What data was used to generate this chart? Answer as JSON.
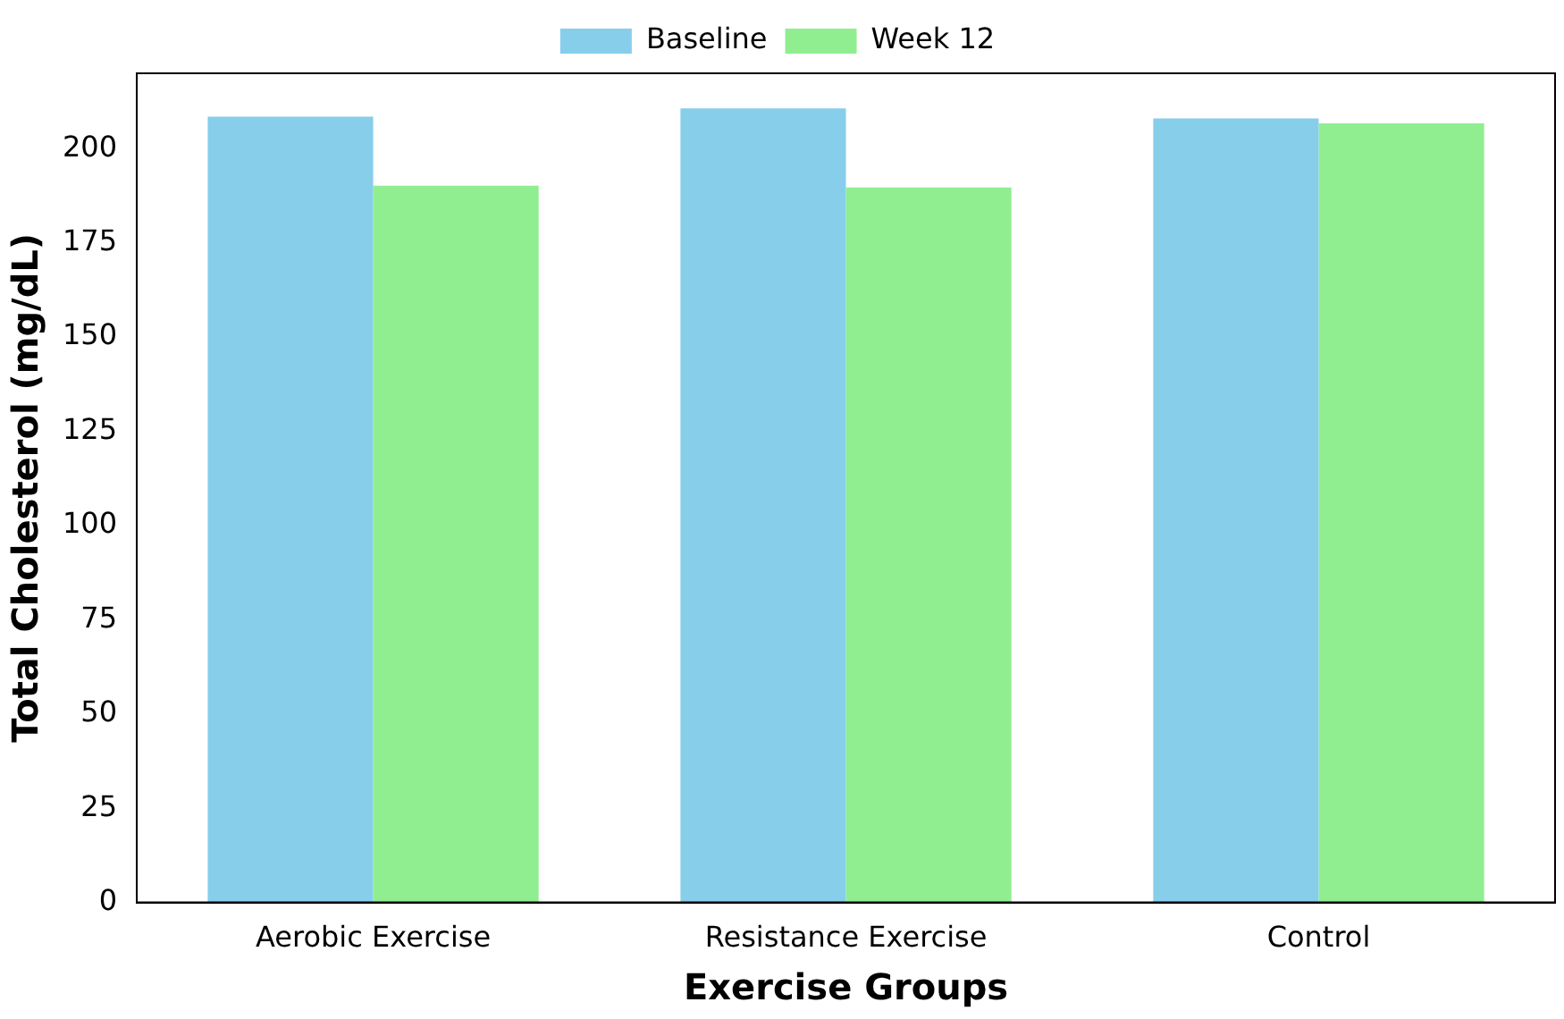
{
  "chart_data": {
    "type": "bar",
    "xlabel": "Exercise Groups",
    "ylabel": "Total Cholesterol (mg/dL)",
    "categories": [
      "Aerobic Exercise",
      "Resistance Exercise",
      "Control"
    ],
    "series": [
      {
        "name": "Baseline",
        "color": "#87ceeb",
        "values": [
          208.5,
          210.7,
          208.0
        ]
      },
      {
        "name": "Week 12",
        "color": "#90ee90",
        "values": [
          190.2,
          189.7,
          206.7
        ]
      }
    ],
    "ylim": [
      0,
      220
    ],
    "yticks": [
      0,
      25,
      50,
      75,
      100,
      125,
      150,
      175,
      200
    ],
    "grid": false,
    "legend": "top"
  }
}
